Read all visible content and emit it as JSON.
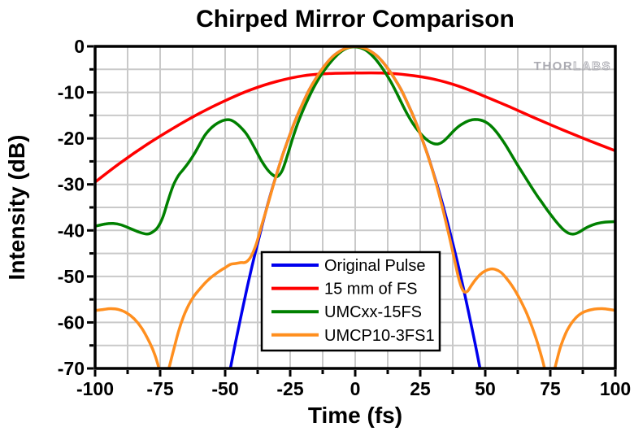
{
  "watermark": {
    "thor": "THOR",
    "labs": "LABS"
  },
  "legend_title": "",
  "chart_data": {
    "type": "line",
    "title": "Chirped Mirror Comparison",
    "xlabel": "Time (fs)",
    "ylabel": "Intensity (dB)",
    "xlim": [
      -100,
      100
    ],
    "ylim": [
      -70,
      0
    ],
    "grid": true,
    "legend_position": "lower-center-inside",
    "x_ticks": {
      "major": [
        -100,
        -75,
        -50,
        -25,
        0,
        25,
        50,
        75,
        100
      ],
      "labels": [
        "-100",
        "-75",
        "-50",
        "-25",
        "0",
        "25",
        "50",
        "75",
        "100"
      ],
      "minor": [
        -87.5,
        -62.5,
        -37.5,
        -12.5,
        12.5,
        37.5,
        62.5,
        87.5
      ],
      "grid": [
        -87.5,
        -75,
        -62.5,
        -50,
        -37.5,
        -25,
        -12.5,
        0,
        12.5,
        25,
        37.5,
        50,
        62.5,
        75,
        87.5
      ]
    },
    "y_ticks": {
      "major": [
        0,
        -10,
        -20,
        -30,
        -40,
        -50,
        -60,
        -70
      ],
      "labels": [
        "0",
        "-10",
        "-20",
        "-30",
        "-40",
        "-50",
        "-60",
        "-70"
      ],
      "minor": [
        -5,
        -15,
        -25,
        -35,
        -45,
        -55,
        -65
      ],
      "grid": [
        -5,
        -10,
        -15,
        -20,
        -25,
        -30,
        -35,
        -40,
        -45,
        -50,
        -55,
        -60,
        -65
      ]
    },
    "series": [
      {
        "name": "Original Pulse",
        "color": "#0000EE",
        "points": [
          [
            -48.5,
            -71.5
          ],
          [
            -46,
            -64.3
          ],
          [
            -44,
            -58.9
          ],
          [
            -42,
            -53.6
          ],
          [
            -40,
            -48.6
          ],
          [
            -38,
            -43.9
          ],
          [
            -36,
            -39.4
          ],
          [
            -34,
            -35.1
          ],
          [
            -32,
            -31.1
          ],
          [
            -30,
            -27.4
          ],
          [
            -28,
            -23.8
          ],
          [
            -26,
            -20.6
          ],
          [
            -24,
            -17.5
          ],
          [
            -22,
            -14.7
          ],
          [
            -20,
            -12.2
          ],
          [
            -18,
            -9.8
          ],
          [
            -16,
            -7.8
          ],
          [
            -14,
            -6.0
          ],
          [
            -12,
            -4.4
          ],
          [
            -10,
            -3.0
          ],
          [
            -8,
            -1.9
          ],
          [
            -6,
            -1.1
          ],
          [
            -4,
            -0.5
          ],
          [
            -2,
            -0.1
          ],
          [
            0,
            0
          ],
          [
            2,
            -0.1
          ],
          [
            4,
            -0.5
          ],
          [
            6,
            -1.1
          ],
          [
            8,
            -1.9
          ],
          [
            10,
            -3.0
          ],
          [
            12,
            -4.4
          ],
          [
            14,
            -6.0
          ],
          [
            16,
            -7.8
          ],
          [
            18,
            -9.8
          ],
          [
            20,
            -12.2
          ],
          [
            22,
            -14.7
          ],
          [
            24,
            -17.5
          ],
          [
            26,
            -20.6
          ],
          [
            28,
            -23.8
          ],
          [
            30,
            -27.4
          ],
          [
            32,
            -31.1
          ],
          [
            34,
            -35.1
          ],
          [
            36,
            -39.4
          ],
          [
            38,
            -43.9
          ],
          [
            40,
            -48.6
          ],
          [
            42,
            -53.6
          ],
          [
            44,
            -58.9
          ],
          [
            46,
            -64.3
          ],
          [
            48.5,
            -71.5
          ]
        ]
      },
      {
        "name": "15 mm of FS",
        "color": "#FF0000",
        "points": [
          [
            -100,
            -29.5
          ],
          [
            -90,
            -25.2
          ],
          [
            -80,
            -21.3
          ],
          [
            -70,
            -17.8
          ],
          [
            -60,
            -14.6
          ],
          [
            -50,
            -11.8
          ],
          [
            -40,
            -9.4
          ],
          [
            -30,
            -7.6
          ],
          [
            -20,
            -6.4
          ],
          [
            -10,
            -5.9
          ],
          [
            0,
            -5.8
          ],
          [
            10,
            -5.8
          ],
          [
            20,
            -6.2
          ],
          [
            30,
            -7.1
          ],
          [
            40,
            -8.7
          ],
          [
            50,
            -10.9
          ],
          [
            60,
            -13.3
          ],
          [
            70,
            -15.8
          ],
          [
            80,
            -18.2
          ],
          [
            90,
            -20.5
          ],
          [
            100,
            -22.7
          ]
        ]
      },
      {
        "name": "UMCxx-15FS",
        "color": "#008000",
        "points": [
          [
            -100,
            -39.1
          ],
          [
            -96,
            -38.6
          ],
          [
            -93,
            -38.5
          ],
          [
            -90,
            -38.8
          ],
          [
            -86,
            -39.7
          ],
          [
            -83,
            -40.4
          ],
          [
            -80,
            -40.8
          ],
          [
            -78,
            -40.4
          ],
          [
            -76,
            -39.4
          ],
          [
            -74,
            -37.2
          ],
          [
            -72,
            -33.6
          ],
          [
            -70,
            -30.3
          ],
          [
            -68,
            -28.1
          ],
          [
            -66,
            -26.7
          ],
          [
            -64,
            -25.2
          ],
          [
            -62,
            -23.5
          ],
          [
            -60,
            -21.5
          ],
          [
            -58,
            -19.5
          ],
          [
            -56,
            -18.1
          ],
          [
            -54,
            -17.1
          ],
          [
            -52,
            -16.4
          ],
          [
            -50,
            -16.0
          ],
          [
            -48,
            -16.0
          ],
          [
            -46,
            -16.6
          ],
          [
            -44,
            -17.6
          ],
          [
            -42,
            -18.9
          ],
          [
            -40,
            -20.7
          ],
          [
            -38,
            -22.8
          ],
          [
            -36,
            -24.9
          ],
          [
            -34,
            -26.6
          ],
          [
            -32,
            -27.8
          ],
          [
            -30,
            -28.3
          ],
          [
            -28,
            -26.9
          ],
          [
            -26,
            -23.6
          ],
          [
            -24,
            -19.9
          ],
          [
            -22,
            -16.6
          ],
          [
            -20,
            -13.8
          ],
          [
            -18,
            -11.3
          ],
          [
            -16,
            -9.0
          ],
          [
            -14,
            -7.0
          ],
          [
            -12,
            -5.3
          ],
          [
            -10,
            -3.8
          ],
          [
            -8,
            -2.5
          ],
          [
            -6,
            -1.4
          ],
          [
            -4,
            -0.6
          ],
          [
            -2,
            -0.2
          ],
          [
            0,
            -0.1
          ],
          [
            2,
            -0.3
          ],
          [
            4,
            -0.8
          ],
          [
            6,
            -1.7
          ],
          [
            8,
            -2.9
          ],
          [
            10,
            -4.4
          ],
          [
            12,
            -6.1
          ],
          [
            14,
            -8.0
          ],
          [
            16,
            -10.2
          ],
          [
            18,
            -12.5
          ],
          [
            20,
            -14.7
          ],
          [
            22,
            -16.6
          ],
          [
            24,
            -18.2
          ],
          [
            26,
            -19.5
          ],
          [
            28,
            -20.5
          ],
          [
            30,
            -21.1
          ],
          [
            32,
            -21.2
          ],
          [
            34,
            -20.6
          ],
          [
            36,
            -19.5
          ],
          [
            38,
            -18.3
          ],
          [
            40,
            -17.3
          ],
          [
            42,
            -16.6
          ],
          [
            44,
            -16.1
          ],
          [
            46,
            -15.9
          ],
          [
            48,
            -16.0
          ],
          [
            50,
            -16.4
          ],
          [
            52,
            -17.2
          ],
          [
            54,
            -18.4
          ],
          [
            56,
            -19.9
          ],
          [
            58,
            -21.6
          ],
          [
            60,
            -23.5
          ],
          [
            62,
            -25.4
          ],
          [
            64,
            -27.2
          ],
          [
            66,
            -29.0
          ],
          [
            68,
            -30.8
          ],
          [
            70,
            -32.5
          ],
          [
            72,
            -34.1
          ],
          [
            74,
            -35.7
          ],
          [
            76,
            -37.2
          ],
          [
            78,
            -38.6
          ],
          [
            80,
            -39.8
          ],
          [
            82,
            -40.6
          ],
          [
            84,
            -40.8
          ],
          [
            86,
            -40.4
          ],
          [
            88,
            -39.7
          ],
          [
            90,
            -39.1
          ],
          [
            93,
            -38.5
          ],
          [
            96,
            -38.2
          ],
          [
            100,
            -38.1
          ]
        ]
      },
      {
        "name": "UMCP10-3FS1",
        "color": "#FF8F1F",
        "points": [
          [
            -100,
            -57.4
          ],
          [
            -97,
            -57.2
          ],
          [
            -94,
            -57.0
          ],
          [
            -91,
            -57.2
          ],
          [
            -88,
            -57.9
          ],
          [
            -85,
            -59.2
          ],
          [
            -82,
            -61.3
          ],
          [
            -79,
            -64.4
          ],
          [
            -77,
            -67.1
          ],
          [
            -75.2,
            -70.5
          ],
          [
            -74.2,
            -73
          ],
          [
            -73,
            -72.6
          ],
          [
            -71.5,
            -69.7
          ],
          [
            -70,
            -66.4
          ],
          [
            -68,
            -62.1
          ],
          [
            -66,
            -58.7
          ],
          [
            -64,
            -56.2
          ],
          [
            -62,
            -54.3
          ],
          [
            -60,
            -52.9
          ],
          [
            -58,
            -51.6
          ],
          [
            -56,
            -50.5
          ],
          [
            -54,
            -49.6
          ],
          [
            -52,
            -48.8
          ],
          [
            -50,
            -48.1
          ],
          [
            -48,
            -47.4
          ],
          [
            -46,
            -47.2
          ],
          [
            -44,
            -47.0
          ],
          [
            -42,
            -46.9
          ],
          [
            -40,
            -45.6
          ],
          [
            -38,
            -42.9
          ],
          [
            -36,
            -39.0
          ],
          [
            -34,
            -35.2
          ],
          [
            -32,
            -31.2
          ],
          [
            -30,
            -27.4
          ],
          [
            -28,
            -23.8
          ],
          [
            -26,
            -20.6
          ],
          [
            -24,
            -17.5
          ],
          [
            -22,
            -14.7
          ],
          [
            -20,
            -12.2
          ],
          [
            -18,
            -9.8
          ],
          [
            -16,
            -7.8
          ],
          [
            -14,
            -6.0
          ],
          [
            -12,
            -4.4
          ],
          [
            -10,
            -3.0
          ],
          [
            -8,
            -1.9
          ],
          [
            -6,
            -1.1
          ],
          [
            -4,
            -0.5
          ],
          [
            -2,
            -0.15
          ],
          [
            0,
            -0.05
          ],
          [
            2,
            -0.15
          ],
          [
            4,
            -0.5
          ],
          [
            6,
            -1.1
          ],
          [
            8,
            -1.9
          ],
          [
            10,
            -3.0
          ],
          [
            12,
            -4.4
          ],
          [
            14,
            -6.0
          ],
          [
            16,
            -7.8
          ],
          [
            18,
            -9.8
          ],
          [
            20,
            -12.2
          ],
          [
            22,
            -14.7
          ],
          [
            24,
            -17.5
          ],
          [
            26,
            -20.6
          ],
          [
            28,
            -23.9
          ],
          [
            30,
            -27.5
          ],
          [
            32,
            -31.6
          ],
          [
            34,
            -36.1
          ],
          [
            36,
            -40.9
          ],
          [
            38,
            -45.9
          ],
          [
            40,
            -50.9
          ],
          [
            41.5,
            -53.1
          ],
          [
            43,
            -53.3
          ],
          [
            44.5,
            -52.1
          ],
          [
            46,
            -50.9
          ],
          [
            48,
            -49.6
          ],
          [
            50,
            -48.8
          ],
          [
            52,
            -48.4
          ],
          [
            54,
            -48.5
          ],
          [
            56,
            -49.1
          ],
          [
            58,
            -50.3
          ],
          [
            60,
            -51.8
          ],
          [
            62,
            -53.6
          ],
          [
            64,
            -55.7
          ],
          [
            66,
            -58.1
          ],
          [
            68,
            -61.0
          ],
          [
            70,
            -64.3
          ],
          [
            72,
            -68.2
          ],
          [
            73.5,
            -71.5
          ],
          [
            74.8,
            -73
          ],
          [
            76,
            -71.6
          ],
          [
            77.5,
            -68.3
          ],
          [
            79,
            -65.2
          ],
          [
            81,
            -62.3
          ],
          [
            83,
            -60.3
          ],
          [
            85,
            -58.9
          ],
          [
            87,
            -58.0
          ],
          [
            89,
            -57.5
          ],
          [
            92,
            -57.1
          ],
          [
            95,
            -57.0
          ],
          [
            98,
            -57.2
          ],
          [
            100,
            -57.4
          ]
        ]
      }
    ]
  }
}
